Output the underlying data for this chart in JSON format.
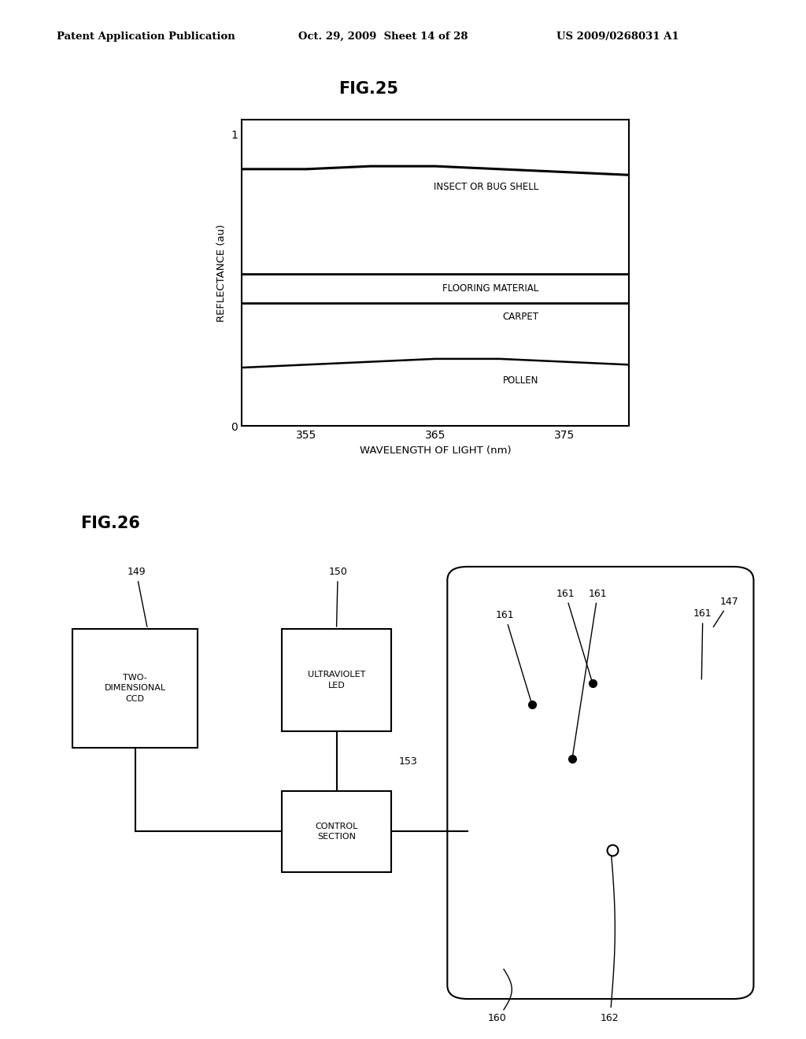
{
  "bg_color": "#ffffff",
  "header_text": "Patent Application Publication",
  "header_date": "Oct. 29, 2009  Sheet 14 of 28",
  "header_patent": "US 2009/0268031 A1",
  "fig25_title": "FIG.25",
  "fig26_title": "FIG.26",
  "xlabel": "WAVELENGTH OF LIGHT (nm)",
  "ylabel": "REFLECTANCE (au)",
  "x_ticks": [
    355,
    365,
    375
  ],
  "y_ticks": [
    0,
    1
  ],
  "x_range": [
    350,
    380
  ],
  "y_range": [
    0,
    1.05
  ],
  "curves": {
    "insect": {
      "x": [
        350,
        355,
        360,
        365,
        370,
        375,
        380
      ],
      "y": [
        0.88,
        0.88,
        0.89,
        0.89,
        0.88,
        0.87,
        0.86
      ]
    },
    "flooring": {
      "x": [
        350,
        355,
        360,
        365,
        370,
        375,
        380
      ],
      "y": [
        0.52,
        0.52,
        0.52,
        0.52,
        0.52,
        0.52,
        0.52
      ]
    },
    "carpet": {
      "x": [
        350,
        355,
        360,
        365,
        370,
        375,
        380
      ],
      "y": [
        0.42,
        0.42,
        0.42,
        0.42,
        0.42,
        0.42,
        0.42
      ]
    },
    "pollen": {
      "x": [
        350,
        355,
        360,
        365,
        370,
        375,
        380
      ],
      "y": [
        0.2,
        0.21,
        0.22,
        0.23,
        0.23,
        0.22,
        0.21
      ]
    }
  }
}
